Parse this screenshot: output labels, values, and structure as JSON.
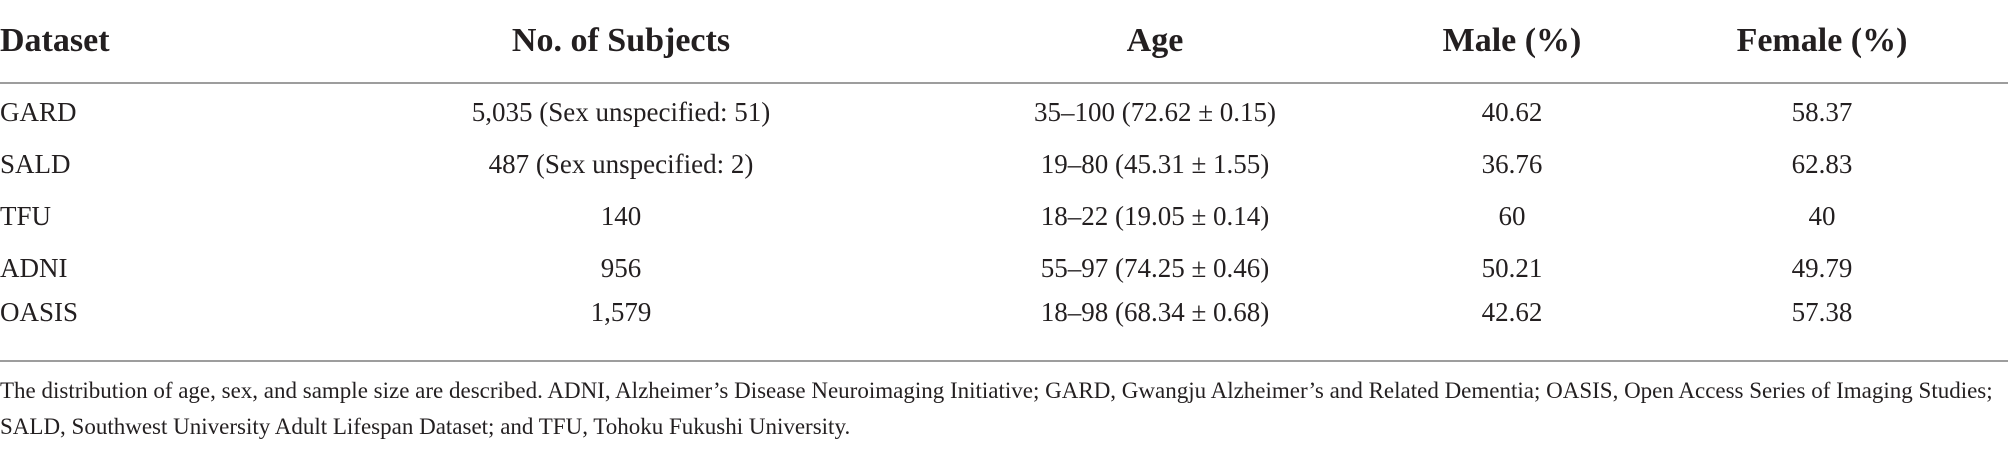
{
  "table": {
    "headers": [
      "Dataset",
      "No. of Subjects",
      "Age",
      "Male (%)",
      "Female (%)"
    ],
    "rows": [
      [
        "GARD",
        "5,035 (Sex unspecified: 51)",
        "35–100 (72.62 ± 0.15)",
        "40.62",
        "58.37"
      ],
      [
        "SALD",
        "487 (Sex unspecified: 2)",
        "19–80 (45.31 ± 1.55)",
        "36.76",
        "62.83"
      ],
      [
        "TFU",
        "140",
        "18–22 (19.05 ± 0.14)",
        "60",
        "40"
      ],
      [
        "ADNI",
        "956",
        "55–97 (74.25 ± 0.46)",
        "50.21",
        "49.79"
      ],
      [
        "OASIS",
        "1,579",
        "18–98 (68.34 ± 0.68)",
        "42.62",
        "57.38"
      ]
    ]
  },
  "footnote": "The distribution of age, sex, and sample size are described. ADNI, Alzheimer’s Disease Neuroimaging Initiative; GARD, Gwangju Alzheimer’s and Related Dementia; OASIS, Open Access Series of Imaging Studies; SALD, Southwest University Adult Lifespan Dataset; and TFU, Tohoku Fukushi University."
}
